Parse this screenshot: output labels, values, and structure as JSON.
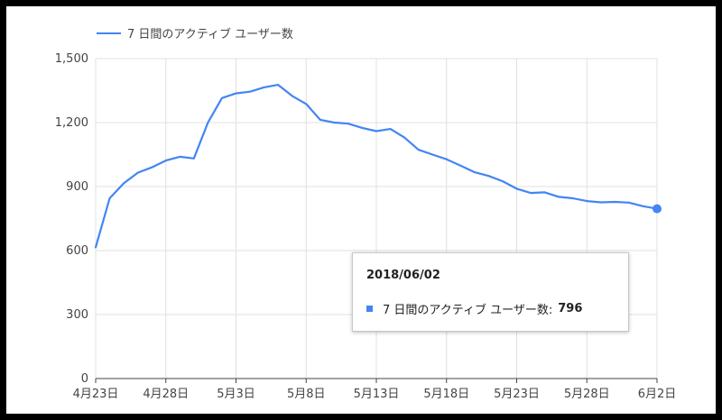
{
  "colors": {
    "series": "#4285f4",
    "grid": "#e0e0e0",
    "axis": "#444444"
  },
  "tooltip": {
    "date": "2018/06/02",
    "series_label": "7 日間のアクティブ ユーザー数:",
    "value": "796"
  },
  "chart_data": {
    "type": "line",
    "title": "",
    "xlabel": "",
    "ylabel": "",
    "ylim": [
      0,
      1500
    ],
    "yticks": [
      "0",
      "300",
      "600",
      "900",
      "1,200",
      "1,500"
    ],
    "ytick_values": [
      0,
      300,
      600,
      900,
      1200,
      1500
    ],
    "xticks": [
      "4月23日",
      "4月28日",
      "5月3日",
      "5月8日",
      "5月13日",
      "5月18日",
      "5月23日",
      "5月28日",
      "6月2日"
    ],
    "xtick_index": [
      0,
      5,
      10,
      15,
      20,
      25,
      30,
      35,
      40
    ],
    "grid": true,
    "legend": "top-left",
    "highlight_index": 40,
    "x": [
      "2018-04-23",
      "2018-04-24",
      "2018-04-25",
      "2018-04-26",
      "2018-04-27",
      "2018-04-28",
      "2018-04-29",
      "2018-04-30",
      "2018-05-01",
      "2018-05-02",
      "2018-05-03",
      "2018-05-04",
      "2018-05-05",
      "2018-05-06",
      "2018-05-07",
      "2018-05-08",
      "2018-05-09",
      "2018-05-10",
      "2018-05-11",
      "2018-05-12",
      "2018-05-13",
      "2018-05-14",
      "2018-05-15",
      "2018-05-16",
      "2018-05-17",
      "2018-05-18",
      "2018-05-19",
      "2018-05-20",
      "2018-05-21",
      "2018-05-22",
      "2018-05-23",
      "2018-05-24",
      "2018-05-25",
      "2018-05-26",
      "2018-05-27",
      "2018-05-28",
      "2018-05-29",
      "2018-05-30",
      "2018-05-31",
      "2018-06-01",
      "2018-06-02"
    ],
    "series": [
      {
        "name": "7 日間のアクティブ ユーザー数",
        "values": [
          615,
          845,
          915,
          965,
          990,
          1022,
          1040,
          1032,
          1200,
          1315,
          1337,
          1345,
          1365,
          1377,
          1325,
          1287,
          1213,
          1200,
          1195,
          1175,
          1160,
          1170,
          1130,
          1073,
          1050,
          1028,
          998,
          967,
          950,
          925,
          890,
          870,
          873,
          852,
          845,
          832,
          826,
          828,
          825,
          808,
          796
        ]
      }
    ]
  }
}
